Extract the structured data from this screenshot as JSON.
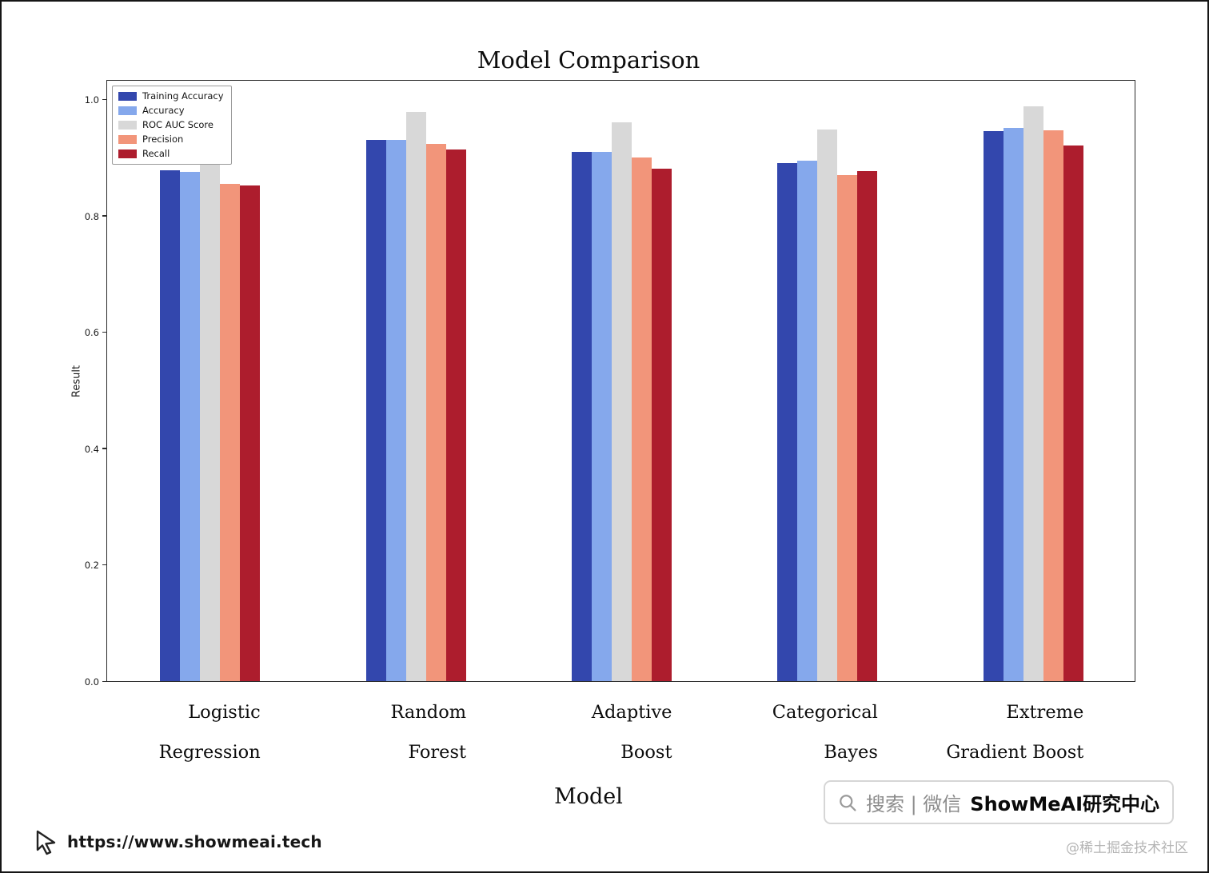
{
  "page": {
    "url": "https://www.showmeai.tech",
    "credit": "@稀土掘金技术社区"
  },
  "badge": {
    "search_label": "搜索 | 微信",
    "brand": "ShowMeAI研究中心"
  },
  "chart_data": {
    "type": "bar",
    "title": "Model Comparison",
    "xlabel": "Model",
    "ylabel": "Result",
    "ylim": [
      0,
      1.0
    ],
    "yticks": [
      0.0,
      0.2,
      0.4,
      0.6,
      0.8,
      1.0
    ],
    "grid": false,
    "legend_position": "upper left",
    "categories": [
      [
        "Logistic",
        "Regression"
      ],
      [
        "Random",
        "Forest"
      ],
      [
        "Adaptive",
        "Boost"
      ],
      [
        "Categorical",
        "Bayes"
      ],
      [
        "Extreme",
        "Gradient Boost"
      ]
    ],
    "colors": [
      "#3347ad",
      "#85a8ec",
      "#d8d8d8",
      "#f2957a",
      "#ad1d2d"
    ],
    "series": [
      {
        "name": "Training Accuracy",
        "values": [
          0.878,
          0.93,
          0.91,
          0.89,
          0.945
        ]
      },
      {
        "name": "Accuracy",
        "values": [
          0.875,
          0.93,
          0.909,
          0.894,
          0.95
        ]
      },
      {
        "name": "ROC AUC Score",
        "values": [
          0.945,
          0.978,
          0.96,
          0.948,
          0.988
        ]
      },
      {
        "name": "Precision",
        "values": [
          0.855,
          0.923,
          0.9,
          0.87,
          0.947
        ]
      },
      {
        "name": "Recall",
        "values": [
          0.851,
          0.913,
          0.881,
          0.876,
          0.921
        ]
      }
    ]
  }
}
